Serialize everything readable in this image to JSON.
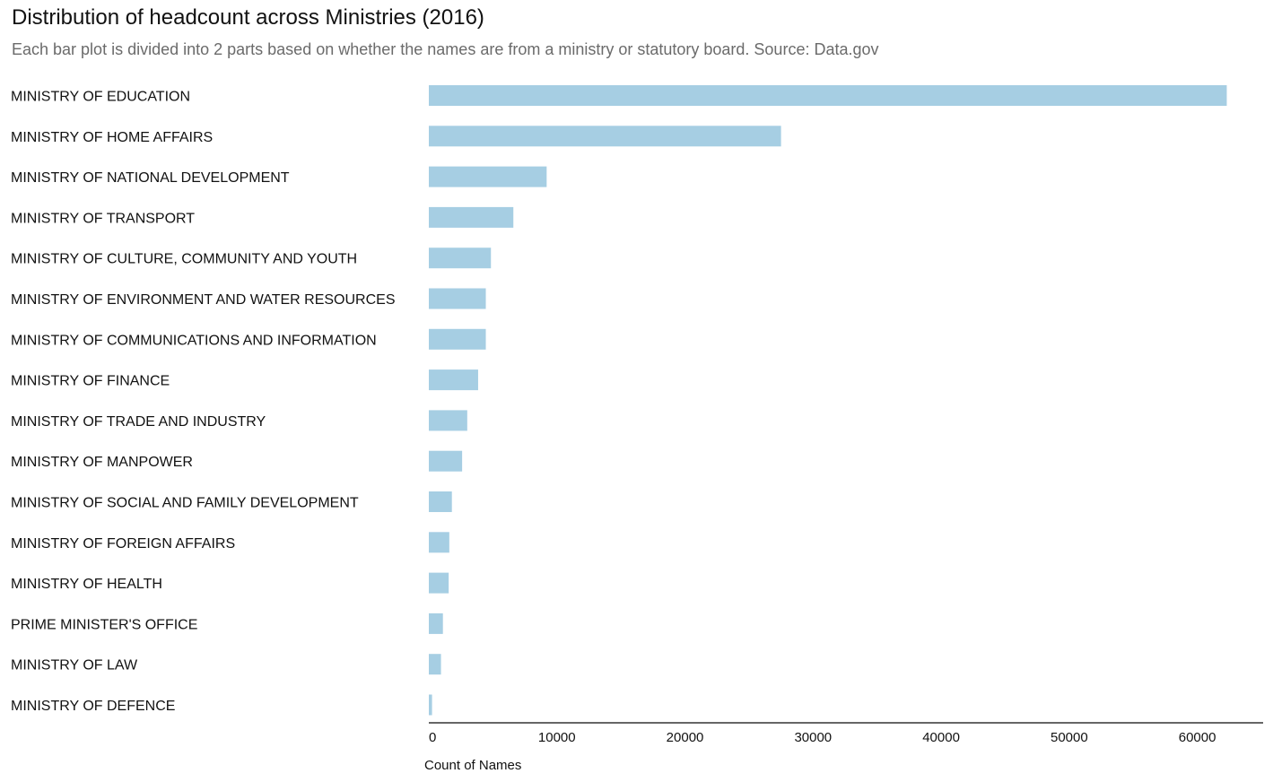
{
  "chart_data": {
    "type": "bar",
    "orientation": "horizontal",
    "title": "Distribution of headcount across Ministries (2016)",
    "subtitle": "Each bar plot is divided into 2 parts based on whether the names are from a ministry or statutory board. Source: Data.gov",
    "xlabel": "Count of Names",
    "ylabel": "",
    "xlim": [
      0,
      65000
    ],
    "xticks": [
      0,
      10000,
      20000,
      30000,
      40000,
      50000,
      60000
    ],
    "grid": false,
    "bar_color": "#a6cee3",
    "axis_color": "#666666",
    "categories": [
      "MINISTRY OF EDUCATION",
      "MINISTRY OF HOME AFFAIRS",
      "MINISTRY OF NATIONAL DEVELOPMENT",
      "MINISTRY OF TRANSPORT",
      "MINISTRY OF CULTURE, COMMUNITY AND YOUTH",
      "MINISTRY OF ENVIRONMENT AND WATER RESOURCES",
      "MINISTRY OF COMMUNICATIONS AND INFORMATION",
      "MINISTRY OF FINANCE",
      "MINISTRY OF TRADE AND INDUSTRY",
      "MINISTRY OF MANPOWER",
      "MINISTRY OF SOCIAL AND FAMILY DEVELOPMENT",
      "MINISTRY OF FOREIGN AFFAIRS",
      "MINISTRY OF HEALTH",
      "PRIME MINISTER'S OFFICE",
      "MINISTRY OF LAW",
      "MINISTRY OF DEFENCE"
    ],
    "values": [
      62300,
      27500,
      9200,
      6600,
      4850,
      4450,
      4450,
      3850,
      3000,
      2600,
      1800,
      1600,
      1550,
      1100,
      950,
      250
    ]
  }
}
